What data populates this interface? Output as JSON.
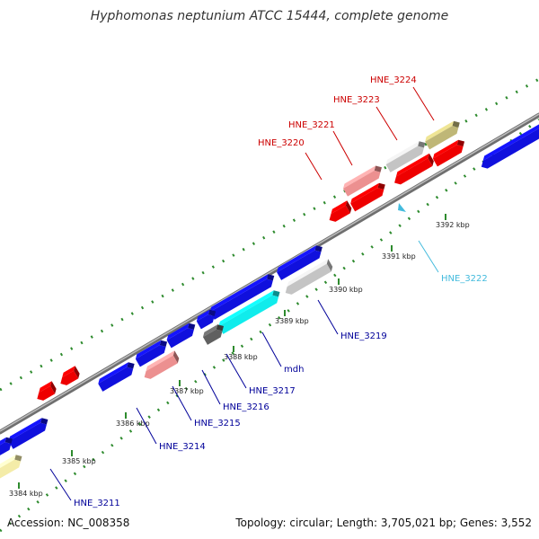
{
  "title": "Hyphomonas neptunium ATCC 15444, complete genome",
  "footer": {
    "accession": "Accession: NC_008358",
    "summary": "Topology: circular; Length: 3,705,021 bp; Genes: 3,552"
  },
  "colors": {
    "red": "#ee0000",
    "pink": "#ec9090",
    "blue": "#1010dd",
    "gray": "#c4c4c4",
    "dark_gray": "#606060",
    "cyan": "#10ecec",
    "olive": "#bfb777",
    "khaki": "#f4eca8",
    "axis": "#808080",
    "dots": "#2e8b2e",
    "label_red": "#cc0000",
    "label_blue": "#000099",
    "label_cyan": "#44bbdd"
  },
  "ticks": [
    {
      "kbp": 3384,
      "label": "3384 kbp"
    },
    {
      "kbp": 3385,
      "label": "3385 kbp"
    },
    {
      "kbp": 3386,
      "label": "3386 kbp"
    },
    {
      "kbp": 3387,
      "label": "3387 kbp"
    },
    {
      "kbp": 3388,
      "label": "3388 kbp"
    },
    {
      "kbp": 3389,
      "label": "3389 kbp"
    },
    {
      "kbp": 3390,
      "label": "3390 kbp"
    },
    {
      "kbp": 3391,
      "label": "3391 kbp"
    },
    {
      "kbp": 3392,
      "label": "3392 kbp"
    }
  ],
  "gene_labels": [
    {
      "name": "HNE_3220",
      "color": "label_red"
    },
    {
      "name": "HNE_3221",
      "color": "label_red"
    },
    {
      "name": "HNE_3223",
      "color": "label_red"
    },
    {
      "name": "HNE_3224",
      "color": "label_red"
    },
    {
      "name": "HNE_3222",
      "color": "label_cyan"
    },
    {
      "name": "HNE_3219",
      "color": "label_blue"
    },
    {
      "name": "mdh",
      "color": "label_blue"
    },
    {
      "name": "HNE_3217",
      "color": "label_blue"
    },
    {
      "name": "HNE_3216",
      "color": "label_blue"
    },
    {
      "name": "HNE_3215",
      "color": "label_blue"
    },
    {
      "name": "HNE_3214",
      "color": "label_blue"
    },
    {
      "name": "HNE_3211",
      "color": "label_blue"
    }
  ]
}
